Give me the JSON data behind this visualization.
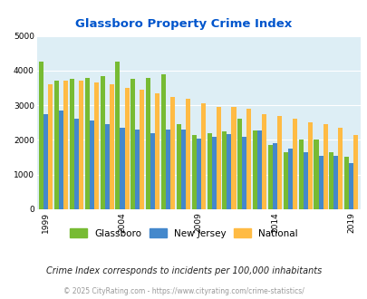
{
  "title": "Glassboro Property Crime Index",
  "years": [
    1999,
    2000,
    2001,
    2002,
    2003,
    2004,
    2005,
    2006,
    2007,
    2008,
    2009,
    2010,
    2011,
    2012,
    2013,
    2014,
    2015,
    2016,
    2017,
    2018,
    2019
  ],
  "glassboro": [
    4250,
    3700,
    3750,
    3800,
    3850,
    4250,
    3750,
    3800,
    3900,
    2450,
    2150,
    2200,
    2250,
    2600,
    2270,
    1850,
    1650,
    2020,
    2000,
    1650,
    1520
  ],
  "new_jersey": [
    2750,
    2850,
    2600,
    2550,
    2450,
    2350,
    2300,
    2200,
    2300,
    2300,
    2050,
    2100,
    2170,
    2080,
    2260,
    1900,
    1750,
    1650,
    1550,
    1550,
    1320
  ],
  "national": [
    3600,
    3700,
    3700,
    3650,
    3600,
    3500,
    3450,
    3350,
    3250,
    3200,
    3050,
    2950,
    2950,
    2900,
    2750,
    2700,
    2600,
    2500,
    2450,
    2350,
    2130
  ],
  "glassboro_color": "#77bb33",
  "nj_color": "#4488cc",
  "national_color": "#ffbb44",
  "bg_color": "#ddeef5",
  "title_color": "#0055cc",
  "ylabel_max": 5000,
  "yticks": [
    0,
    1000,
    2000,
    3000,
    4000,
    5000
  ],
  "xlabel_ticks": [
    1999,
    2004,
    2009,
    2014,
    2019
  ],
  "note": "Crime Index corresponds to incidents per 100,000 inhabitants",
  "footer": "© 2025 CityRating.com - https://www.cityrating.com/crime-statistics/",
  "legend_labels": [
    "Glassboro",
    "New Jersey",
    "National"
  ]
}
